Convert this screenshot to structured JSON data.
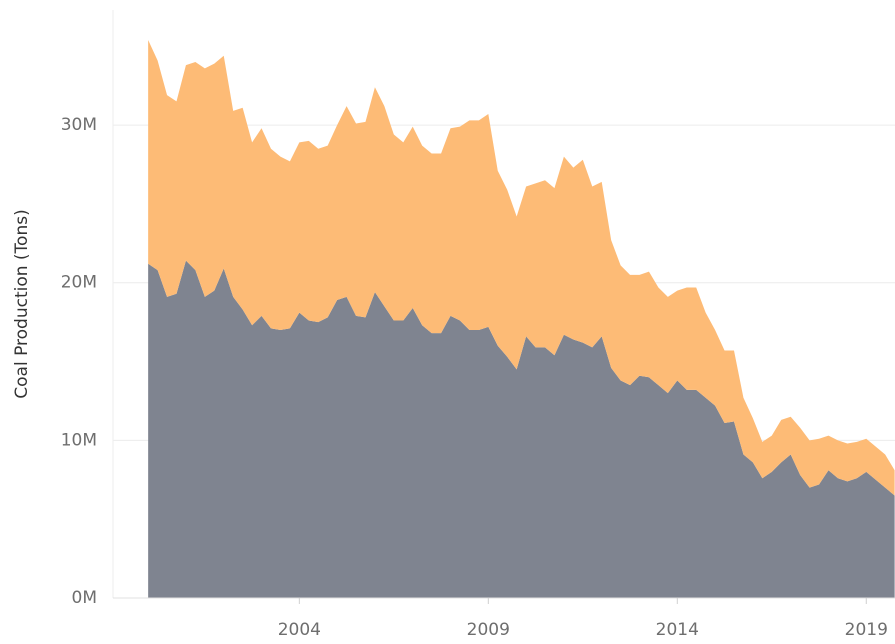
{
  "chart_data": {
    "type": "stacked_area",
    "y_label": "Coal Production (Tons)",
    "x": [
      2000,
      2000.25,
      2000.5,
      2000.75,
      2001,
      2001.25,
      2001.5,
      2001.75,
      2002,
      2002.25,
      2002.5,
      2002.75,
      2003,
      2003.25,
      2003.5,
      2003.75,
      2004,
      2004.25,
      2004.5,
      2004.75,
      2005,
      2005.25,
      2005.5,
      2005.75,
      2006,
      2006.25,
      2006.5,
      2006.75,
      2007,
      2007.25,
      2007.5,
      2007.75,
      2008,
      2008.25,
      2008.5,
      2008.75,
      2009,
      2009.25,
      2009.5,
      2009.75,
      2010,
      2010.25,
      2010.5,
      2010.75,
      2011,
      2011.25,
      2011.5,
      2011.75,
      2012,
      2012.25,
      2012.5,
      2012.75,
      2013,
      2013.25,
      2013.5,
      2013.75,
      2014,
      2014.25,
      2014.5,
      2014.75,
      2015,
      2015.25,
      2015.5,
      2015.75,
      2016,
      2016.25,
      2016.5,
      2016.75,
      2017,
      2017.25,
      2017.5,
      2017.75,
      2018,
      2018.25,
      2018.5,
      2018.75,
      2019,
      2019.25,
      2019.5,
      2019.75
    ],
    "series": [
      {
        "color": "#7f8490",
        "values": [
          21200000,
          20800000,
          19100000,
          19300000,
          21400000,
          20800000,
          19100000,
          19500000,
          20900000,
          19100000,
          18300000,
          17300000,
          17900000,
          17100000,
          17000000,
          17100000,
          18100000,
          17600000,
          17500000,
          17800000,
          18900000,
          19100000,
          17900000,
          17800000,
          19400000,
          18500000,
          17600000,
          17600000,
          18400000,
          17300000,
          16800000,
          16800000,
          17900000,
          17600000,
          17000000,
          17000000,
          17200000,
          16000000,
          15300000,
          14500000,
          16600000,
          15900000,
          15900000,
          15400000,
          16700000,
          16400000,
          16200000,
          15900000,
          16600000,
          14600000,
          13800000,
          13500000,
          14100000,
          14000000,
          13500000,
          13000000,
          13800000,
          13200000,
          13200000,
          12700000,
          12200000,
          11100000,
          11200000,
          9100000,
          8600000,
          7600000,
          8000000,
          8600000,
          9100000,
          7800000,
          7000000,
          7200000,
          8100000,
          7600000,
          7400000,
          7600000,
          8000000,
          7500000,
          7000000,
          6500000
        ]
      },
      {
        "color": "#fdbb76",
        "values": [
          14200000,
          13300000,
          12800000,
          12200000,
          12400000,
          13200000,
          14500000,
          14400000,
          13500000,
          11800000,
          12800000,
          11600000,
          11900000,
          11400000,
          11000000,
          10600000,
          10800000,
          11400000,
          11000000,
          10900000,
          11100000,
          12100000,
          12200000,
          12400000,
          13000000,
          12700000,
          11800000,
          11300000,
          11500000,
          11400000,
          11400000,
          11400000,
          11900000,
          12300000,
          13300000,
          13300000,
          13500000,
          11100000,
          10600000,
          9700000,
          9500000,
          10400000,
          10600000,
          10600000,
          11300000,
          10900000,
          11600000,
          10200000,
          9800000,
          8100000,
          7300000,
          7000000,
          6400000,
          6700000,
          6200000,
          6100000,
          5700000,
          6500000,
          6500000,
          5400000,
          4800000,
          4600000,
          4500000,
          3600000,
          2800000,
          2300000,
          2300000,
          2700000,
          2400000,
          3000000,
          3000000,
          2900000,
          2200000,
          2400000,
          2400000,
          2300000,
          2100000,
          2100000,
          2100000,
          1600000
        ]
      }
    ],
    "xlim": [
      1999.07,
      2019.76
    ],
    "xticks": [
      2004,
      2009,
      2014,
      2019
    ],
    "ylim": [
      0,
      37300000
    ],
    "yticks": [
      {
        "value": 0,
        "label": "0M"
      },
      {
        "value": 10000000,
        "label": "10M"
      },
      {
        "value": 20000000,
        "label": "20M"
      },
      {
        "value": 30000000,
        "label": "30M"
      }
    ],
    "grid": true
  }
}
